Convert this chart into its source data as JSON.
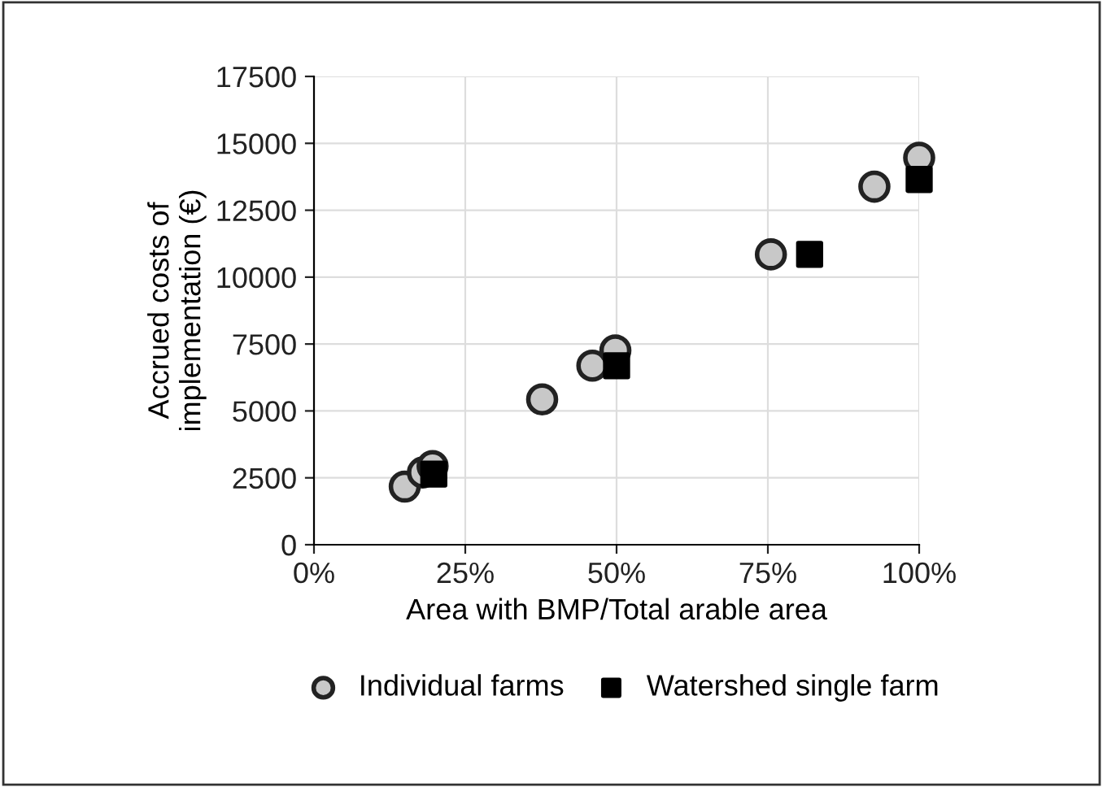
{
  "chart_data": {
    "type": "scatter",
    "xlabel": "Area with BMP/Total arable area",
    "ylabel": "Accrued costs of\nimplementation (€)",
    "series": [
      {
        "name": "Individual farms",
        "color": "#c8c8c8",
        "marker": "circle",
        "x": [
          15,
          18,
          19.6,
          37.7,
          46,
          49.8,
          75.5,
          92.6,
          100
        ],
        "values": [
          2170,
          2700,
          2940,
          5430,
          6690,
          7260,
          10850,
          13380,
          14460
        ]
      },
      {
        "name": "Watershed single farm",
        "color": "#000000",
        "marker": "square",
        "x": [
          19.8,
          50,
          81.9,
          100
        ],
        "values": [
          2640,
          6690,
          10850,
          13650
        ]
      }
    ],
    "xlim": [
      0,
      100
    ],
    "xticks": [
      {
        "value": 0,
        "label": "0%"
      },
      {
        "value": 25,
        "label": "25%"
      },
      {
        "value": 50,
        "label": "50%"
      },
      {
        "value": 75,
        "label": "75%"
      },
      {
        "value": 100,
        "label": "100%"
      }
    ],
    "ylim": [
      0,
      17500
    ],
    "yticks": [
      0,
      2500,
      5000,
      7500,
      10000,
      12500,
      15000,
      17500
    ],
    "grid": true,
    "legend": "bottom"
  }
}
